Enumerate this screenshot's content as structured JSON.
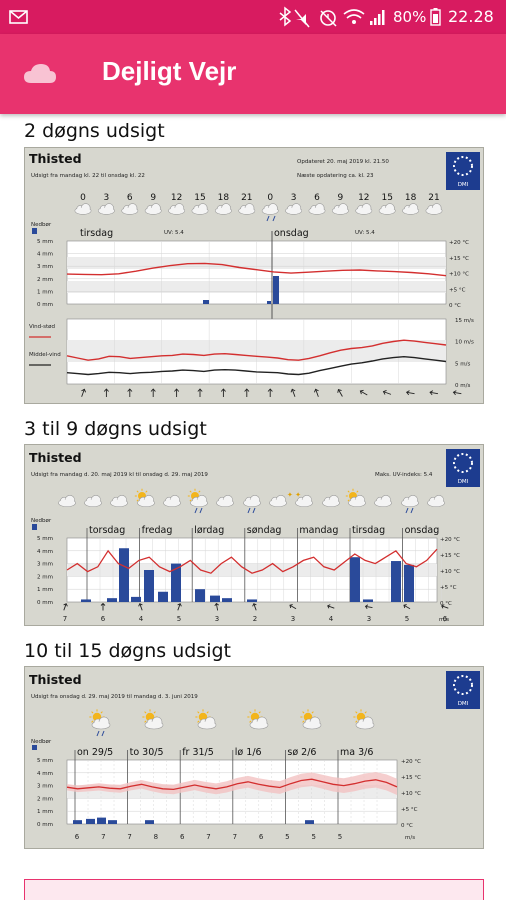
{
  "status_bar": {
    "battery": "80%",
    "time": "22.28",
    "icons": [
      "mail-icon",
      "bluetooth-icon",
      "mute-icon",
      "alarm-icon",
      "wifi-icon",
      "signal-icon",
      "battery-icon"
    ]
  },
  "app_bar": {
    "title": "Dejligt Vejr",
    "icon": "cloud-icon"
  },
  "sections": [
    {
      "title": "2 døgns udsigt",
      "place": "Thisted",
      "period": "Udsigt fra mandag kl. 22 til onsdag kl. 22",
      "updated": "Opdateret 20. maj 2019 kl. 21.50",
      "next_update": "Næste opdatering ca. kl. 23",
      "hours": [
        "0",
        "3",
        "6",
        "9",
        "12",
        "15",
        "18",
        "21",
        "0",
        "3",
        "6",
        "9",
        "12",
        "15",
        "18",
        "21"
      ],
      "days": [
        "tirsdag",
        "onsdag"
      ],
      "uv": [
        "UV: 5.4",
        "UV: 5.4"
      ],
      "precip_label": "Nedbør",
      "precip_ticks": [
        "5 mm",
        "4 mm",
        "3 mm",
        "2 mm",
        "1 mm",
        "0 mm"
      ],
      "temp_ticks": [
        "+20 °C",
        "+15 °C",
        "+10 °C",
        "+5 °C",
        "0 °C"
      ],
      "wind_labels": [
        "Vind-stød",
        "Middel-vind"
      ],
      "wind_ticks": [
        "15 m/s",
        "10 m/s",
        "5 m/s",
        "0 m/s"
      ],
      "logo": "DMI"
    },
    {
      "title": "3 til 9 døgns udsigt",
      "place": "Thisted",
      "period": "Udsigt fra mandag d. 20. maj 2019 kl til onsdag d. 29. maj 2019",
      "uv": "Maks. UV-indeks: 5.4",
      "days": [
        "torsdag",
        "fredag",
        "lørdag",
        "søndag",
        "mandag",
        "tirsdag",
        "onsdag"
      ],
      "precip_label": "Nedbør",
      "precip_ticks": [
        "5 mm",
        "4 mm",
        "3 mm",
        "2 mm",
        "1 mm",
        "0 mm"
      ],
      "temp_ticks": [
        "+20 °C",
        "+15 °C",
        "+10 °C",
        "+5 °C",
        "0 °C"
      ],
      "wind": [
        "7",
        "6",
        "4",
        "5",
        "3",
        "2",
        "3",
        "4",
        "3",
        "5",
        "6"
      ],
      "wind_unit": "m/s",
      "logo": "DMI"
    },
    {
      "title": "10 til 15 døgns udsigt",
      "place": "Thisted",
      "period": "Udsigt fra onsdag d. 29. maj 2019 til mandag d. 3. juni 2019",
      "days": [
        "on 29/5",
        "to 30/5",
        "fr 31/5",
        "lø 1/6",
        "sø 2/6",
        "ma 3/6"
      ],
      "precip_label": "Nedbør",
      "precip_ticks": [
        "5 mm",
        "4 mm",
        "3 mm",
        "2 mm",
        "1 mm",
        "0 mm"
      ],
      "temp_ticks": [
        "+20 °C",
        "+15 °C",
        "+10 °C",
        "+5 °C",
        "0 °C"
      ],
      "wind": [
        "6",
        "7",
        "7",
        "8",
        "6",
        "7",
        "7",
        "6",
        "5",
        "5",
        "5"
      ],
      "wind_unit": "m/s",
      "logo": "DMI"
    }
  ],
  "colors": {
    "status": "#d81b60",
    "appbar": "#e8336e",
    "panel": "#d7d7cf",
    "temp": "#d32f2f",
    "rain": "#2a4a9a"
  }
}
